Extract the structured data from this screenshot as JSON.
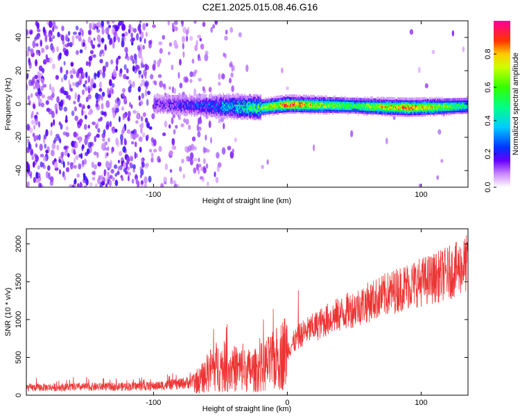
{
  "title": "C2E1.2025.015.08.46.G16",
  "chart_data": [
    {
      "type": "heatmap",
      "xlabel": "Height of straight line (km)",
      "ylabel": "Frequency (Hz)",
      "xlim": [
        -195,
        135
      ],
      "ylim": [
        -50,
        50
      ],
      "xticks": [
        -100,
        0,
        100
      ],
      "xtick_labels": [
        "-100",
        "",
        "100"
      ],
      "yticks": [
        -40,
        -20,
        0,
        20,
        40
      ],
      "ytick_labels": [
        "-40",
        "-20",
        "0",
        "20",
        "40"
      ],
      "grid": false,
      "colorbar": {
        "label": "Normalized spectral amplitude",
        "range": [
          0,
          1
        ],
        "ticks": [
          0.0,
          0.2,
          0.4,
          0.6,
          0.8
        ],
        "tick_labels": [
          "0.0",
          "0.2",
          "0.4",
          "0.6",
          "0.8"
        ]
      },
      "description_points": [
        {
          "x": -195,
          "freq_center": 0,
          "amplitude": 0.05
        },
        {
          "x": -100,
          "freq_center": 0,
          "amplitude": 0.15
        },
        {
          "x": -60,
          "freq_center": -1,
          "amplitude": 0.25
        },
        {
          "x": -20,
          "freq_center": -2,
          "amplitude": 0.6
        },
        {
          "x": 0,
          "freq_center": 0,
          "amplitude": 0.9
        },
        {
          "x": 50,
          "freq_center": -1,
          "amplitude": 0.55
        },
        {
          "x": 90,
          "freq_center": -2,
          "amplitude": 0.95
        },
        {
          "x": 135,
          "freq_center": -1,
          "amplitude": 0.45
        }
      ]
    },
    {
      "type": "line",
      "xlabel": "Height of straight line (km)",
      "ylabel": "SNR (10 * v/v)",
      "xlim": [
        -195,
        135
      ],
      "ylim": [
        0,
        2200
      ],
      "xticks": [
        -100,
        0,
        100
      ],
      "xtick_labels": [
        "-100",
        "0",
        "100"
      ],
      "yticks": [
        0,
        500,
        1000,
        1500,
        2000
      ],
      "ytick_labels": [
        "0",
        "500",
        "1000",
        "1500",
        "2000"
      ],
      "grid": false,
      "series_color": "#ee3333",
      "trend": [
        {
          "x": -195,
          "y": 100
        },
        {
          "x": -100,
          "y": 120
        },
        {
          "x": -80,
          "y": 150
        },
        {
          "x": -65,
          "y": 200
        },
        {
          "x": -55,
          "y": 380
        },
        {
          "x": -40,
          "y": 350
        },
        {
          "x": -25,
          "y": 320
        },
        {
          "x": -10,
          "y": 450
        },
        {
          "x": 0,
          "y": 600
        },
        {
          "x": 10,
          "y": 800
        },
        {
          "x": 20,
          "y": 900
        },
        {
          "x": 30,
          "y": 1000
        },
        {
          "x": 50,
          "y": 1150
        },
        {
          "x": 70,
          "y": 1300
        },
        {
          "x": 90,
          "y": 1450
        },
        {
          "x": 110,
          "y": 1550
        },
        {
          "x": 125,
          "y": 1650
        },
        {
          "x": 135,
          "y": 1750
        }
      ]
    }
  ]
}
